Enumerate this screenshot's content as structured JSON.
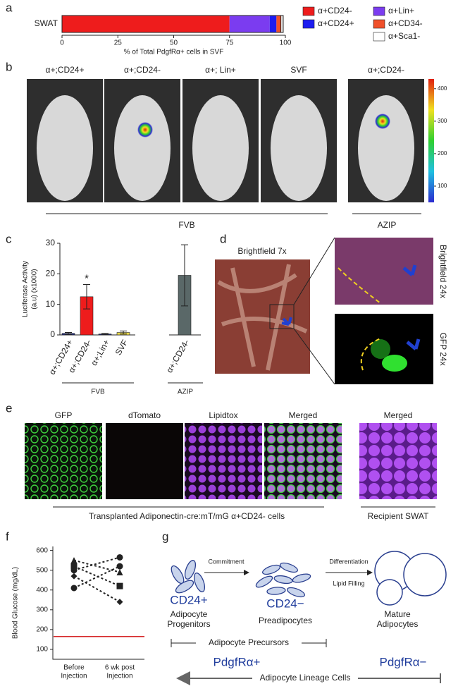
{
  "panel_labels": [
    "a",
    "b",
    "c",
    "d",
    "e",
    "f",
    "g"
  ],
  "chart_data": [
    {
      "type": "stacked_hbar",
      "categories": [
        "SWAT"
      ],
      "xlabel": "% of Total PdgfRα+ cells in SVF",
      "xlim": [
        0,
        100
      ],
      "xticks": [
        0,
        25,
        50,
        75,
        100
      ],
      "series": [
        {
          "name": "α+CD24-",
          "color": "#ee1c1c",
          "values": [
            75
          ]
        },
        {
          "name": "α+Lin+",
          "color": "#7b3cf0",
          "values": [
            18
          ]
        },
        {
          "name": "α+CD24+",
          "color": "#1c1cf0",
          "values": [
            3
          ]
        },
        {
          "name": "α+CD34-",
          "color": "#f0502a",
          "values": [
            2
          ]
        },
        {
          "name": "α+Sca1-",
          "color": "#ffffff",
          "values": [
            1
          ]
        }
      ]
    },
    {
      "type": "bar",
      "ylabel": [
        "Luciferase Activity",
        "(a.u) (x1000)"
      ],
      "categories": [
        "α+;CD24+",
        "α+;CD24-",
        "α+;Lin+",
        "SVF",
        "α+;CD24-"
      ],
      "values": [
        0.5,
        12.5,
        0.3,
        0.8,
        19.5
      ],
      "errors": [
        0.3,
        4,
        0.2,
        0.5,
        10
      ],
      "colors": [
        "#1f2a7a",
        "#ee1c1c",
        "#1f2a7a",
        "#e8d84a",
        "#5a6868"
      ],
      "ylim": [
        0,
        30
      ],
      "yticks": [
        0,
        10,
        20,
        30
      ],
      "annotation": "*",
      "group_labels": [
        "FVB",
        "AZIP"
      ]
    },
    {
      "type": "line",
      "ylabel": "Blood Glucose (mg/dL)",
      "categories": [
        [
          "Before",
          "Injection"
        ],
        [
          "6 wk post",
          "Injection"
        ]
      ],
      "ylim": [
        50,
        620
      ],
      "yticks": [
        100,
        200,
        300,
        400,
        500,
        600
      ],
      "series": [
        {
          "marker": "circle",
          "color": "#222222",
          "values": [
            500,
            565
          ]
        },
        {
          "marker": "triangle",
          "color": "#222222",
          "values": [
            550,
            490
          ]
        },
        {
          "marker": "square",
          "color": "#222222",
          "values": [
            520,
            420
          ]
        },
        {
          "marker": "diamond",
          "color": "#222222",
          "values": [
            470,
            340
          ]
        },
        {
          "marker": "circle",
          "color": "#222222",
          "values": [
            410,
            520
          ]
        }
      ],
      "hline": 165,
      "hline_color": "#d62728"
    }
  ],
  "panel_b": {
    "labels": [
      "α+;CD24+",
      "α+;CD24-",
      "α+; Lin+",
      "SVF",
      "α+;CD24-"
    ],
    "group_labels": [
      "FVB",
      "AZIP"
    ],
    "colorbar": {
      "lim": [
        50,
        430
      ],
      "ticks": [
        100,
        200,
        300,
        400
      ]
    }
  },
  "panel_d": {
    "labels": [
      "Brightfield 7x",
      "Brightfield 24x",
      "GFP 24x"
    ]
  },
  "panel_e": {
    "labels": [
      "GFP",
      "dTomato",
      "Lipidtox",
      "Merged",
      "Merged"
    ],
    "captions": [
      "Transplanted Adiponectin-cre:mT/mG α+CD24- cells",
      "Recipient SWAT"
    ]
  },
  "panel_g": {
    "arrows": [
      "Commitment",
      "Differentiation"
    ],
    "note": "Lipid Filling",
    "stages": [
      {
        "marker": "CD24+",
        "label": [
          "Adipocyte",
          "Progenitors"
        ]
      },
      {
        "marker": "CD24−",
        "label": [
          "Preadipocytes"
        ]
      },
      {
        "label": [
          "Mature",
          "Adipocytes"
        ]
      }
    ],
    "bracket": "Adipocyte Precursors",
    "markers": [
      "PdgfRα+",
      "PdgfRα−"
    ],
    "lineage": "Adipocyte Lineage Cells"
  }
}
